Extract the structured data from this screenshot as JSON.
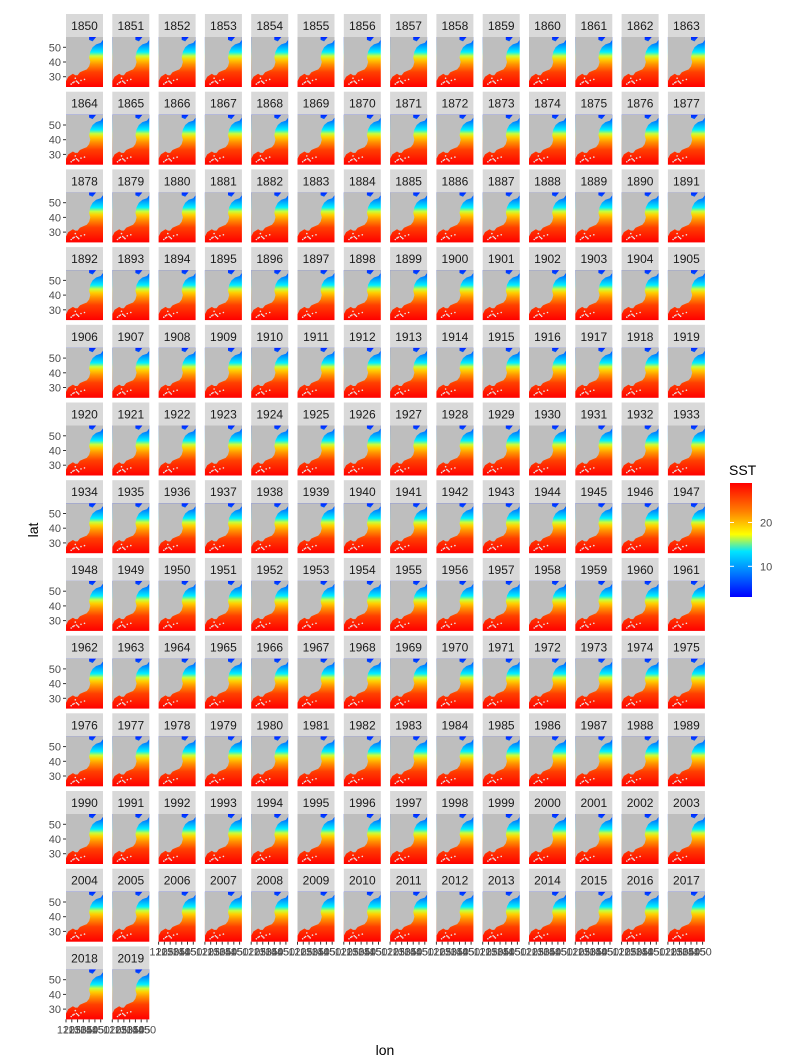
{
  "chart_data": {
    "type": "heatmap",
    "facet_variable": "year",
    "facets": [
      "1850",
      "1851",
      "1852",
      "1853",
      "1854",
      "1855",
      "1856",
      "1857",
      "1858",
      "1859",
      "1860",
      "1861",
      "1862",
      "1863",
      "1864",
      "1865",
      "1866",
      "1867",
      "1868",
      "1869",
      "1870",
      "1871",
      "1872",
      "1873",
      "1874",
      "1875",
      "1876",
      "1877",
      "1878",
      "1879",
      "1880",
      "1881",
      "1882",
      "1883",
      "1884",
      "1885",
      "1886",
      "1887",
      "1888",
      "1889",
      "1890",
      "1891",
      "1892",
      "1893",
      "1894",
      "1895",
      "1896",
      "1897",
      "1898",
      "1899",
      "1900",
      "1901",
      "1902",
      "1903",
      "1904",
      "1905",
      "1906",
      "1907",
      "1908",
      "1909",
      "1910",
      "1911",
      "1912",
      "1913",
      "1914",
      "1915",
      "1916",
      "1917",
      "1918",
      "1919",
      "1920",
      "1921",
      "1922",
      "1923",
      "1924",
      "1925",
      "1926",
      "1927",
      "1928",
      "1929",
      "1930",
      "1931",
      "1932",
      "1933",
      "1934",
      "1935",
      "1936",
      "1937",
      "1938",
      "1939",
      "1940",
      "1941",
      "1942",
      "1943",
      "1944",
      "1945",
      "1946",
      "1947",
      "1948",
      "1949",
      "1950",
      "1951",
      "1952",
      "1953",
      "1954",
      "1955",
      "1956",
      "1957",
      "1958",
      "1959",
      "1960",
      "1961",
      "1962",
      "1963",
      "1964",
      "1965",
      "1966",
      "1967",
      "1968",
      "1969",
      "1970",
      "1971",
      "1972",
      "1973",
      "1974",
      "1975",
      "1976",
      "1977",
      "1978",
      "1979",
      "1980",
      "1981",
      "1982",
      "1983",
      "1984",
      "1985",
      "1986",
      "1987",
      "1988",
      "1989",
      "1990",
      "1991",
      "1992",
      "1993",
      "1994",
      "1995",
      "1996",
      "1997",
      "1998",
      "1999",
      "2000",
      "2001",
      "2002",
      "2003",
      "2004",
      "2005",
      "2006",
      "2007",
      "2008",
      "2009",
      "2010",
      "2011",
      "2012",
      "2013",
      "2014",
      "2015",
      "2016",
      "2017",
      "2018",
      "2019"
    ],
    "xlabel": "lon",
    "ylabel": "lat",
    "y_ticks": [
      30,
      40,
      50
    ],
    "x_ticks": [
      120,
      125,
      130,
      135,
      140,
      145,
      150
    ],
    "x_tick_labels": [
      "120",
      "125",
      "130",
      "135",
      "140",
      "145",
      "150"
    ],
    "xlim": [
      120,
      152
    ],
    "ylim": [
      23,
      57
    ],
    "fill_variable": "SST",
    "legend": {
      "title": "SST",
      "position": "right",
      "ticks": [
        10,
        20
      ],
      "range": [
        3,
        29
      ],
      "colors": [
        "#0000ff",
        "#0080ff",
        "#00e5ff",
        "#ffff00",
        "#ff8000",
        "#ff0000"
      ]
    },
    "colors": {
      "land": "#bebebe",
      "strip_background": "#d9d9d9",
      "background": "#ffffff"
    }
  }
}
